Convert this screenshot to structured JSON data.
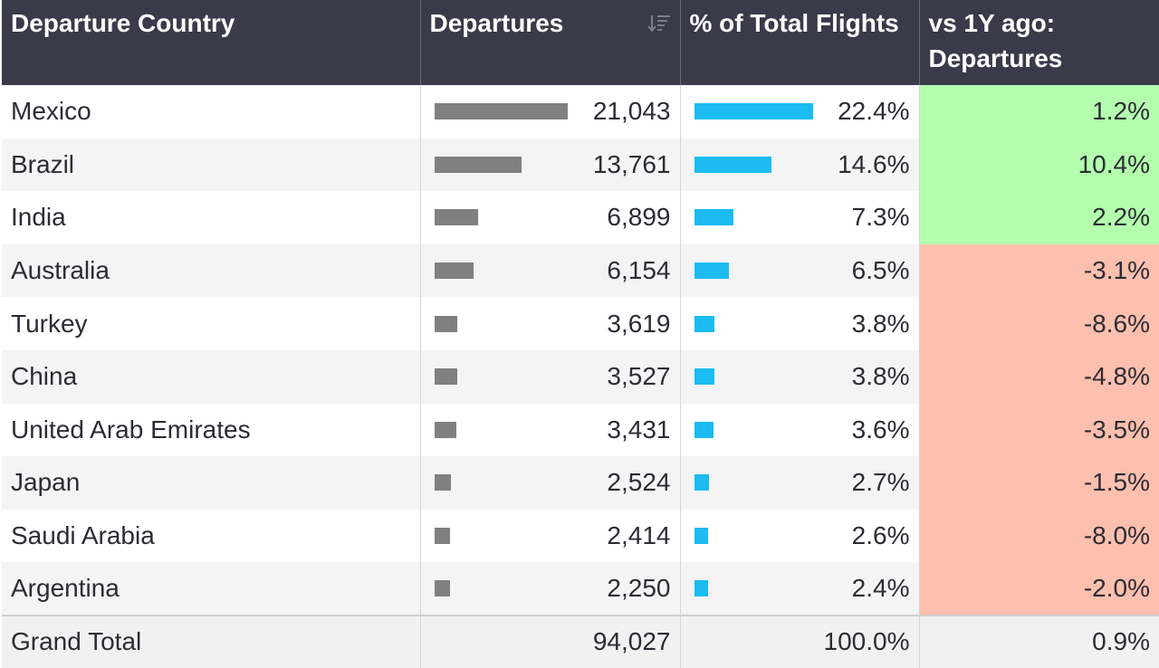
{
  "header": {
    "col_country": "Departure Country",
    "col_departures": "Departures",
    "col_pct": "% of Total Flights",
    "col_vs": "vs 1Y ago: Departures"
  },
  "rows": [
    {
      "country": "Mexico",
      "departures": "21,043",
      "departures_value": 21043,
      "pct": "22.4%",
      "pct_value": 22.4,
      "vs": "1.2%",
      "vs_value": 1.2
    },
    {
      "country": "Brazil",
      "departures": "13,761",
      "departures_value": 13761,
      "pct": "14.6%",
      "pct_value": 14.6,
      "vs": "10.4%",
      "vs_value": 10.4
    },
    {
      "country": "India",
      "departures": "6,899",
      "departures_value": 6899,
      "pct": "7.3%",
      "pct_value": 7.3,
      "vs": "2.2%",
      "vs_value": 2.2
    },
    {
      "country": "Australia",
      "departures": "6,154",
      "departures_value": 6154,
      "pct": "6.5%",
      "pct_value": 6.5,
      "vs": "-3.1%",
      "vs_value": -3.1
    },
    {
      "country": "Turkey",
      "departures": "3,619",
      "departures_value": 3619,
      "pct": "3.8%",
      "pct_value": 3.8,
      "vs": "-8.6%",
      "vs_value": -8.6
    },
    {
      "country": "China",
      "departures": "3,527",
      "departures_value": 3527,
      "pct": "3.8%",
      "pct_value": 3.8,
      "vs": "-4.8%",
      "vs_value": -4.8
    },
    {
      "country": "United Arab Emirates",
      "departures": "3,431",
      "departures_value": 3431,
      "pct": "3.6%",
      "pct_value": 3.6,
      "vs": "-3.5%",
      "vs_value": -3.5
    },
    {
      "country": "Japan",
      "departures": "2,524",
      "departures_value": 2524,
      "pct": "2.7%",
      "pct_value": 2.7,
      "vs": "-1.5%",
      "vs_value": -1.5
    },
    {
      "country": "Saudi Arabia",
      "departures": "2,414",
      "departures_value": 2414,
      "pct": "2.6%",
      "pct_value": 2.6,
      "vs": "-8.0%",
      "vs_value": -8.0
    },
    {
      "country": "Argentina",
      "departures": "2,250",
      "departures_value": 2250,
      "pct": "2.4%",
      "pct_value": 2.4,
      "vs": "-2.0%",
      "vs_value": -2.0
    }
  ],
  "total": {
    "label": "Grand Total",
    "departures": "94,027",
    "pct": "100.0%",
    "vs": "0.9%"
  },
  "colors": {
    "header_bg": "#3b3a4a",
    "departures_bar": "#808080",
    "pct_bar": "#1cbcf2",
    "positive_bg": "#b3ffae",
    "negative_bg": "#fdbfae"
  },
  "icons": {
    "sort": "sort-descending-icon"
  }
}
